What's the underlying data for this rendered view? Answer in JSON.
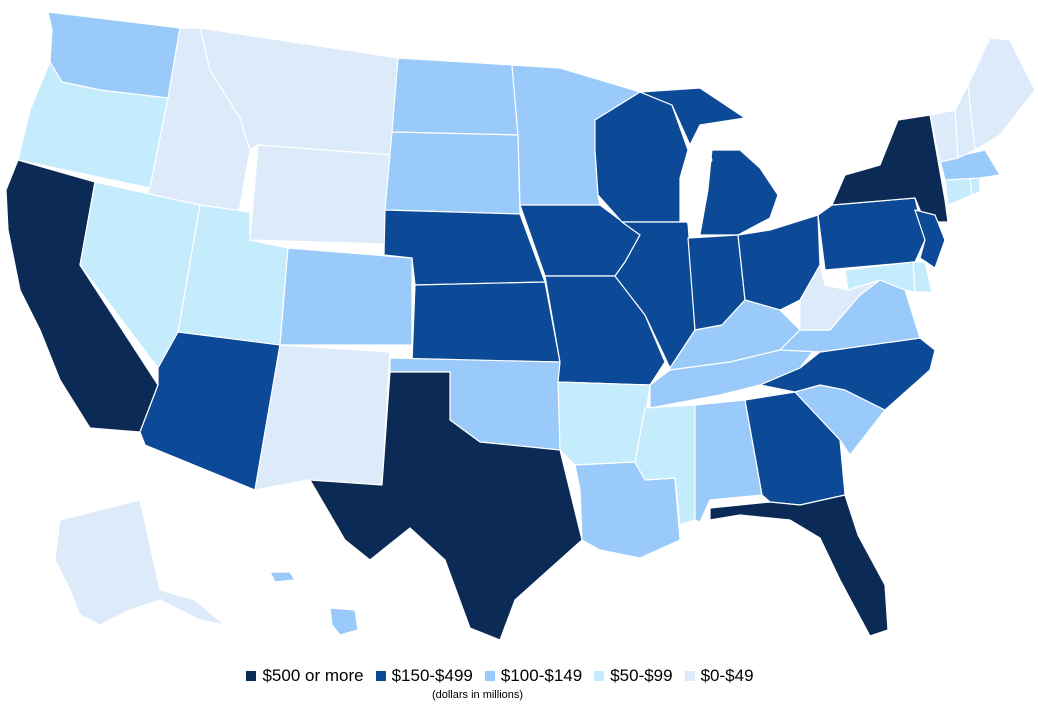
{
  "map": {
    "legend": [
      {
        "key": "c500",
        "label": "$500 or more",
        "color": "#0b2a55"
      },
      {
        "key": "c150",
        "label": "$150-$499",
        "color": "#0c4a97"
      },
      {
        "key": "c100",
        "label": "$100-$149",
        "color": "#99caf9"
      },
      {
        "key": "c50",
        "label": "$50-$99",
        "color": "#c5ecfc"
      },
      {
        "key": "c0",
        "label": "$0-$49",
        "color": "#dceafa"
      }
    ],
    "note": "(dollars in millions)",
    "states": {
      "WA": "c100",
      "OR": "c50",
      "CA": "c500",
      "ID": "c0",
      "NV": "c50",
      "MT": "c0",
      "WY": "c0",
      "UT": "c50",
      "AZ": "c150",
      "CO": "c100",
      "NM": "c0",
      "ND": "c100",
      "SD": "c100",
      "NE": "c150",
      "KS": "c150",
      "OK": "c100",
      "TX": "c500",
      "MN": "c100",
      "IA": "c150",
      "MO": "c150",
      "AR": "c50",
      "LA": "c100",
      "WI": "c150",
      "IL": "c150",
      "MI": "c150",
      "IN": "c150",
      "OH": "c150",
      "KY": "c100",
      "TN": "c100",
      "MS": "c50",
      "AL": "c100",
      "GA": "c150",
      "FL": "c500",
      "SC": "c100",
      "NC": "c150",
      "VA": "c100",
      "WV": "c0",
      "PA": "c150",
      "NY": "c500",
      "NJ": "c150",
      "DE": "c50",
      "MD": "c50",
      "CT": "c50",
      "RI": "c50",
      "MA": "c100",
      "VT": "c0",
      "NH": "c0",
      "ME": "c0",
      "AK": "c0",
      "HI": "c100"
    }
  }
}
